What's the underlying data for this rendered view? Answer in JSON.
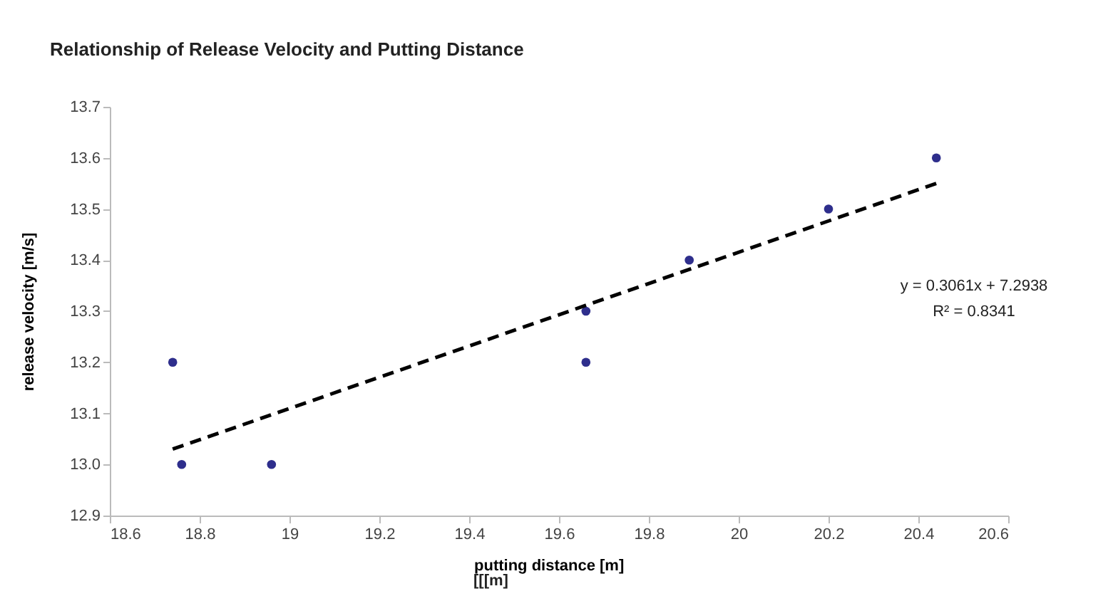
{
  "chart_data": {
    "type": "scatter",
    "title": "Relationship of Release Velocity and Putting Distance",
    "xlabel": "putting distance [m]",
    "ylabel": "release velocity [m/s]",
    "annotations": [
      "y = 0.3061x + 7.2938",
      "R² = 0.8341",
      "[[[m]"
    ],
    "xlim": [
      18.6,
      20.6
    ],
    "xticks": [
      18.6,
      18.8,
      19,
      19.2,
      19.4,
      19.6,
      19.8,
      20,
      20.2,
      20.4,
      20.6
    ],
    "ylim": [
      12.9,
      13.7
    ],
    "yticks": [
      12.9,
      {
        "value": 13,
        "label": "13.0"
      },
      13.1,
      13.2,
      13.3,
      13.4,
      13.5,
      13.6,
      13.7
    ],
    "grid": false,
    "marker": "circle",
    "series": [
      {
        "color": "#2e2e8c",
        "x": [
          18.74,
          18.76,
          18.96,
          19.66,
          19.66,
          19.89,
          20.2,
          20.44
        ],
        "values": [
          13.2,
          13.0,
          13.0,
          13.3,
          13.2,
          13.4,
          13.5,
          13.6
        ]
      },
      {
        "type": "line",
        "color": "#000000",
        "line_style": "dashed",
        "marker": "none",
        "x": [
          18.74,
          20.44
        ],
        "values": [
          13.03,
          13.55
        ]
      }
    ]
  }
}
